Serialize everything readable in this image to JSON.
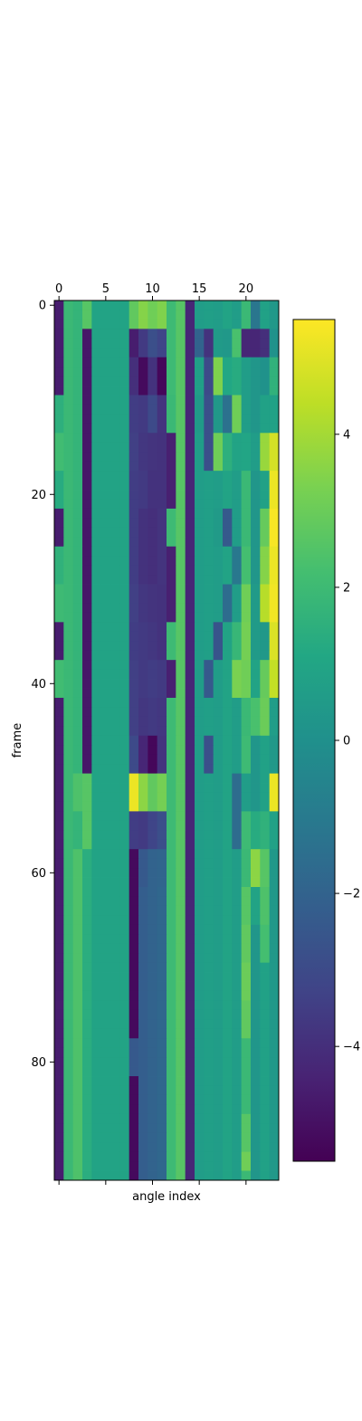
{
  "chart_data": {
    "type": "heatmap",
    "title": "",
    "xlabel": "angle index",
    "ylabel": "frame",
    "n_cols": 24,
    "n_rows": 93,
    "x_ticks": [
      0,
      5,
      10,
      15,
      20
    ],
    "y_ticks": [
      0,
      20,
      40,
      60,
      80
    ],
    "x_tick_labels": [
      "0",
      "5",
      "10",
      "15",
      "20"
    ],
    "y_tick_labels": [
      "0",
      "20",
      "40",
      "60",
      "80"
    ],
    "x_axis_labels_position": "top",
    "colormap": "viridis",
    "value_range": [
      -5.5,
      5.5
    ],
    "colorbar": {
      "position": "right",
      "ticks": [
        4,
        2,
        0,
        -2,
        -4
      ],
      "tick_labels": [
        "4",
        "2",
        "0",
        "−2",
        "−4"
      ]
    },
    "grid": false,
    "value_rows": {
      "0": [
        -4.6,
        1.9,
        1.7,
        2.6,
        0.9,
        0.9,
        0.9,
        0.9,
        2.8,
        3.5,
        3.1,
        3.4,
        2.0,
        2.6,
        -4.3,
        0.6,
        0.7,
        0.6,
        0.9,
        0.6,
        1.9,
        -1.2,
        0.8,
        0.4
      ],
      "3": [
        -4.6,
        1.9,
        1.7,
        -4.8,
        0.9,
        0.9,
        0.9,
        0.9,
        -4.6,
        -3.6,
        -2.8,
        -3.2,
        2.0,
        2.6,
        -4.3,
        -2.0,
        -3.9,
        0.5,
        0.4,
        2.3,
        -4.3,
        -4.3,
        -4.0,
        0.1
      ],
      "6": [
        -4.6,
        1.9,
        1.7,
        -4.8,
        0.9,
        0.9,
        0.9,
        0.9,
        -4.0,
        -5.2,
        -3.9,
        -5.3,
        2.0,
        2.6,
        -4.3,
        0.7,
        -3.0,
        3.4,
        1.1,
        1.3,
        0.6,
        0.3,
        0.1,
        1.6
      ],
      "10": [
        1.5,
        1.9,
        1.7,
        -4.8,
        0.9,
        0.9,
        0.9,
        0.9,
        -3.5,
        -3.6,
        -3.0,
        -3.8,
        1.9,
        2.6,
        -4.3,
        0.5,
        -2.8,
        0.4,
        -1.4,
        3.1,
        0.6,
        0.3,
        0.8,
        0.8
      ],
      "14": [
        2.1,
        1.9,
        1.7,
        -4.8,
        0.9,
        0.9,
        0.9,
        0.9,
        -3.4,
        -3.7,
        -3.8,
        -3.9,
        -4.5,
        2.6,
        -4.3,
        0.6,
        -2.8,
        3.1,
        1.5,
        0.9,
        1.0,
        0.6,
        3.8,
        4.8
      ],
      "18": [
        1.3,
        1.9,
        1.7,
        -4.8,
        0.9,
        0.9,
        0.9,
        0.9,
        -3.5,
        -3.6,
        -3.9,
        -3.9,
        -4.5,
        2.6,
        -4.3,
        0.6,
        0.7,
        0.6,
        0.9,
        0.6,
        1.9,
        0.3,
        0.8,
        5.2
      ],
      "22": [
        -4.6,
        1.9,
        1.7,
        -4.8,
        0.9,
        0.9,
        0.9,
        0.9,
        -3.5,
        -3.9,
        -4.0,
        -3.8,
        2.0,
        2.6,
        -4.3,
        0.6,
        0.7,
        0.5,
        -2.4,
        0.6,
        1.9,
        0.3,
        2.9,
        5.4
      ],
      "26": [
        1.6,
        1.9,
        1.7,
        -4.8,
        0.9,
        0.9,
        0.9,
        0.9,
        -3.5,
        -3.9,
        -4.0,
        -3.8,
        -4.5,
        2.6,
        -4.3,
        0.6,
        0.7,
        0.6,
        0.9,
        -1.1,
        2.2,
        0.3,
        3.5,
        5.2
      ],
      "30": [
        2.0,
        1.9,
        1.7,
        -4.8,
        0.9,
        0.9,
        0.9,
        0.9,
        -3.4,
        -3.7,
        -3.8,
        -3.9,
        -4.5,
        2.6,
        -4.3,
        0.6,
        0.7,
        0.6,
        -1.6,
        0.6,
        3.1,
        0.5,
        4.3,
        5.3
      ],
      "34": [
        -4.6,
        1.9,
        1.7,
        -4.8,
        0.9,
        0.9,
        0.9,
        0.9,
        -3.5,
        -3.6,
        -3.7,
        -3.9,
        2.0,
        2.6,
        -4.3,
        0.6,
        0.7,
        -2.6,
        0.9,
        1.8,
        3.2,
        0.5,
        0.4,
        4.9
      ],
      "38": [
        2.1,
        1.9,
        1.7,
        -4.8,
        0.9,
        0.9,
        0.9,
        0.9,
        -3.4,
        -3.6,
        -3.5,
        -3.6,
        -4.5,
        2.6,
        -4.3,
        0.6,
        -2.4,
        0.6,
        0.9,
        3.3,
        3.1,
        0.9,
        2.9,
        4.5
      ],
      "42": [
        -4.6,
        1.9,
        1.7,
        -4.8,
        0.9,
        0.9,
        0.9,
        0.9,
        -3.4,
        -3.7,
        -3.6,
        -3.7,
        2.0,
        2.6,
        -4.3,
        0.6,
        0.7,
        0.6,
        0.9,
        0.6,
        1.9,
        2.3,
        3.0,
        0.6
      ],
      "46": [
        -4.6,
        1.9,
        1.7,
        -4.8,
        0.9,
        0.9,
        0.9,
        0.9,
        -3.0,
        -4.3,
        -5.3,
        -3.8,
        2.0,
        2.6,
        -4.3,
        0.6,
        -2.8,
        0.6,
        0.9,
        0.6,
        2.0,
        0.3,
        0.8,
        0.4
      ],
      "50": [
        -4.6,
        1.9,
        2.4,
        2.6,
        0.9,
        0.9,
        0.9,
        0.9,
        5.2,
        3.6,
        2.8,
        3.2,
        2.0,
        2.6,
        -4.3,
        0.6,
        0.7,
        0.6,
        0.9,
        -1.6,
        0.6,
        0.3,
        0.8,
        5.2
      ],
      "54": [
        -4.6,
        1.9,
        1.7,
        2.6,
        0.9,
        0.9,
        0.9,
        0.9,
        -3.5,
        -3.6,
        -3.2,
        -2.8,
        2.0,
        2.6,
        -4.3,
        0.6,
        0.7,
        0.6,
        0.9,
        -1.6,
        2.0,
        1.3,
        1.6,
        0.8
      ],
      "58": [
        -4.6,
        1.9,
        2.4,
        1.4,
        0.9,
        0.9,
        0.9,
        0.9,
        -5.2,
        -2.4,
        -2.0,
        -1.9,
        2.0,
        2.6,
        -4.3,
        0.6,
        0.7,
        0.6,
        0.9,
        0.6,
        1.9,
        3.6,
        2.6,
        0.4
      ],
      "62": [
        -4.6,
        1.9,
        2.4,
        1.4,
        0.9,
        0.9,
        0.9,
        0.9,
        -5.2,
        -2.2,
        -2.0,
        -1.8,
        2.0,
        2.6,
        -4.3,
        0.6,
        0.7,
        0.6,
        0.9,
        0.6,
        2.6,
        0.9,
        2.4,
        0.4
      ],
      "66": [
        -4.6,
        1.9,
        2.4,
        1.4,
        0.9,
        0.9,
        0.9,
        0.9,
        -5.2,
        -2.2,
        -2.0,
        -1.8,
        2.0,
        2.6,
        -4.3,
        0.6,
        0.7,
        0.6,
        0.9,
        0.6,
        2.8,
        0.3,
        2.2,
        0.4
      ],
      "70": [
        -4.6,
        1.9,
        2.4,
        1.4,
        0.9,
        0.9,
        0.9,
        0.9,
        -5.2,
        -2.2,
        -2.0,
        -1.8,
        2.0,
        2.6,
        -4.3,
        0.6,
        0.7,
        0.6,
        0.9,
        0.6,
        3.0,
        0.3,
        0.8,
        0.4
      ],
      "74": [
        -4.6,
        1.9,
        2.4,
        1.4,
        0.9,
        0.9,
        0.9,
        0.9,
        -5.2,
        -2.2,
        -2.0,
        -1.8,
        2.0,
        2.6,
        -4.3,
        0.6,
        0.7,
        0.6,
        0.9,
        0.6,
        2.8,
        0.3,
        0.8,
        0.4
      ],
      "78": [
        -4.6,
        1.9,
        2.4,
        1.4,
        0.9,
        0.9,
        0.9,
        0.9,
        -2.4,
        -2.2,
        -2.0,
        -1.8,
        2.0,
        2.6,
        -4.3,
        0.6,
        0.7,
        0.6,
        0.9,
        0.6,
        1.9,
        0.3,
        0.8,
        0.4
      ],
      "82": [
        -4.6,
        1.9,
        2.4,
        1.4,
        0.9,
        0.9,
        0.9,
        0.9,
        -5.2,
        -2.2,
        -2.0,
        -1.8,
        2.0,
        2.6,
        -4.3,
        0.6,
        0.7,
        0.6,
        0.9,
        0.6,
        1.9,
        0.3,
        0.8,
        0.4
      ],
      "86": [
        -4.6,
        1.9,
        2.4,
        1.4,
        0.9,
        0.9,
        0.9,
        0.9,
        -5.2,
        -2.2,
        -2.0,
        -1.8,
        2.0,
        2.6,
        -4.3,
        0.6,
        0.7,
        0.6,
        0.9,
        0.6,
        2.6,
        0.3,
        0.8,
        0.4
      ],
      "90": [
        -4.6,
        1.9,
        2.4,
        1.4,
        0.9,
        0.9,
        0.9,
        0.9,
        -5.2,
        -2.2,
        -2.0,
        -1.8,
        2.0,
        2.6,
        -4.3,
        0.6,
        0.7,
        0.6,
        0.9,
        0.6,
        3.1,
        0.3,
        0.8,
        0.4
      ],
      "92": [
        -4.6,
        1.9,
        2.4,
        1.4,
        0.9,
        0.9,
        0.9,
        0.9,
        -5.2,
        -2.2,
        -2.0,
        -1.8,
        2.0,
        2.6,
        -4.3,
        0.6,
        0.7,
        0.6,
        0.9,
        0.6,
        1.9,
        0.3,
        0.8,
        0.4
      ]
    }
  }
}
